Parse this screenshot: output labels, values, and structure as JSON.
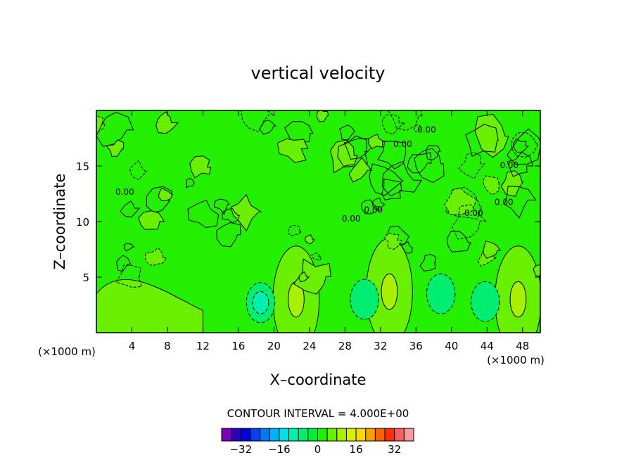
{
  "chart_data": {
    "type": "heatmap",
    "title": "vertical velocity",
    "xlabel": "X–coordinate",
    "ylabel": "Z–coordinate",
    "x_unit_label": "(×1000 m)",
    "y_unit_label": "(×1000 m)",
    "xlim": [
      0,
      50
    ],
    "ylim": [
      0,
      20
    ],
    "x_ticks": [
      4,
      8,
      12,
      16,
      20,
      24,
      28,
      32,
      36,
      40,
      44,
      48
    ],
    "y_ticks": [
      5,
      10,
      15
    ],
    "contour_interval_text": "CONTOUR INTERVAL = 4.000E+00",
    "contour_interval": 4,
    "contour_labels": [
      "0.00",
      "0.00",
      "0.00",
      "0.00",
      "0.00",
      "0.00",
      "0.00",
      "0.00"
    ],
    "colorbar": {
      "levels": [
        -40,
        -36,
        -32,
        -28,
        -24,
        -20,
        -16,
        -12,
        -8,
        -4,
        0,
        4,
        8,
        12,
        16,
        20,
        24,
        28,
        32,
        36,
        40
      ],
      "tick_labels": [
        "−32",
        "−16",
        "0",
        "16",
        "32"
      ],
      "tick_values": [
        -32,
        -16,
        0,
        16,
        32
      ],
      "colors": [
        "#7a00b4",
        "#2a00b8",
        "#0000dc",
        "#0040f0",
        "#0078f8",
        "#00b0f8",
        "#00e0e8",
        "#00f0b0",
        "#00ee70",
        "#00ee38",
        "#20f000",
        "#68f000",
        "#a8f000",
        "#d8f000",
        "#f8d800",
        "#f8a000",
        "#f86000",
        "#f83010",
        "#f86060",
        "#f89898"
      ]
    },
    "features": [
      {
        "kind": "updraft",
        "x": 22.5,
        "z": 3.0,
        "max": 8
      },
      {
        "kind": "updraft",
        "x": 33.0,
        "z": 3.7,
        "max": 8
      },
      {
        "kind": "updraft",
        "x": 47.5,
        "z": 3.0,
        "max": 8
      },
      {
        "kind": "downdraft",
        "x": 18.5,
        "z": 2.7,
        "min": -8
      },
      {
        "kind": "downdraft",
        "x": 30.2,
        "z": 3.0,
        "min": -4
      },
      {
        "kind": "downdraft",
        "x": 38.8,
        "z": 3.5,
        "min": -4
      },
      {
        "kind": "downdraft",
        "x": 43.8,
        "z": 2.8,
        "min": -4
      }
    ]
  }
}
